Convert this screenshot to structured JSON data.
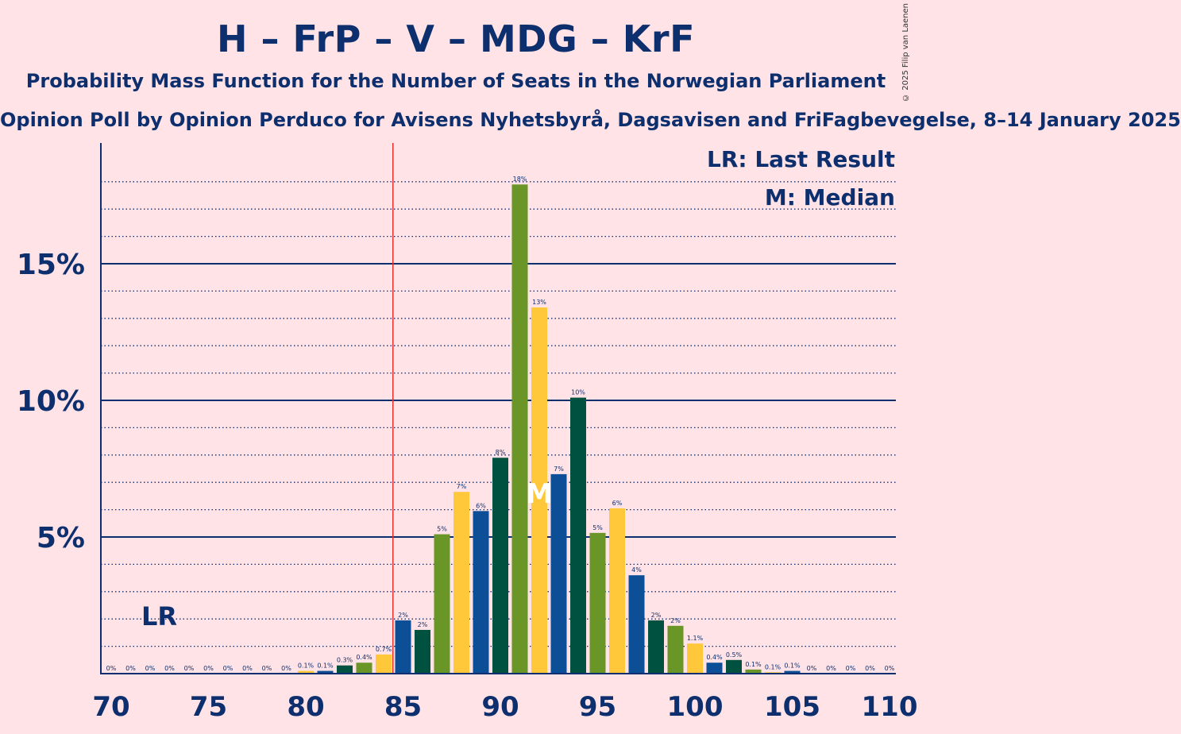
{
  "title": "H – FrP – V – MDG – KrF",
  "subtitle": "Probability Mass Function for the Number of Seats in the Norwegian Parliament",
  "subtitle2": "Opinion Poll by Opinion Perduco for Avisens Nyhetsbyrå, Dagsavisen and FriFagbevegelse, 8–14 January 2025",
  "copyright": "© 2025 Filip van Laenen",
  "legend": {
    "lr": "LR: Last Result",
    "m": "M: Median"
  },
  "chart_data": {
    "type": "bar",
    "x": [
      70,
      71,
      72,
      73,
      74,
      75,
      76,
      77,
      78,
      79,
      80,
      81,
      82,
      83,
      84,
      85,
      86,
      87,
      88,
      89,
      90,
      91,
      92,
      93,
      94,
      95,
      96,
      97,
      98,
      99,
      100,
      101,
      102,
      103,
      104,
      105,
      106,
      107,
      108,
      109,
      110
    ],
    "values": [
      0,
      0,
      0,
      0,
      0,
      0,
      0,
      0,
      0,
      0,
      0.1,
      0.1,
      0.3,
      0.4,
      0.7,
      1.95,
      1.6,
      5.1,
      6.65,
      5.95,
      7.9,
      17.9,
      13.4,
      7.3,
      10.1,
      5.15,
      6.05,
      3.6,
      1.95,
      1.75,
      1.1,
      0.4,
      0.5,
      0.15,
      0.05,
      0.1,
      0,
      0,
      0,
      0,
      0
    ],
    "labels": [
      "0%",
      "0%",
      "0%",
      "0%",
      "0%",
      "0%",
      "0%",
      "0%",
      "0%",
      "0%",
      "0.1%",
      "0.1%",
      "0.3%",
      "0.4%",
      "0.7%",
      "2%",
      "2%",
      "5%",
      "7%",
      "6%",
      "8%",
      "18%",
      "13%",
      "7%",
      "10%",
      "5%",
      "6%",
      "4%",
      "2%",
      "2%",
      "1.1%",
      "0.4%",
      "0.5%",
      "0.1%",
      "0.1%",
      "0.1%",
      "0%",
      "0%",
      "0%",
      "0%",
      "0%"
    ],
    "x_ticks": [
      "70",
      "75",
      "80",
      "85",
      "90",
      "95",
      "100",
      "105",
      "110"
    ],
    "y_ticks": [
      "5%",
      "10%",
      "15%"
    ],
    "ylim": [
      0,
      19
    ],
    "last_result": 72,
    "last_result_label": "LR",
    "majority": 85,
    "median": 92,
    "median_label": "M",
    "colors": [
      "#0D4F96",
      "#00513F",
      "#6A9627",
      "#FFC83A"
    ]
  }
}
